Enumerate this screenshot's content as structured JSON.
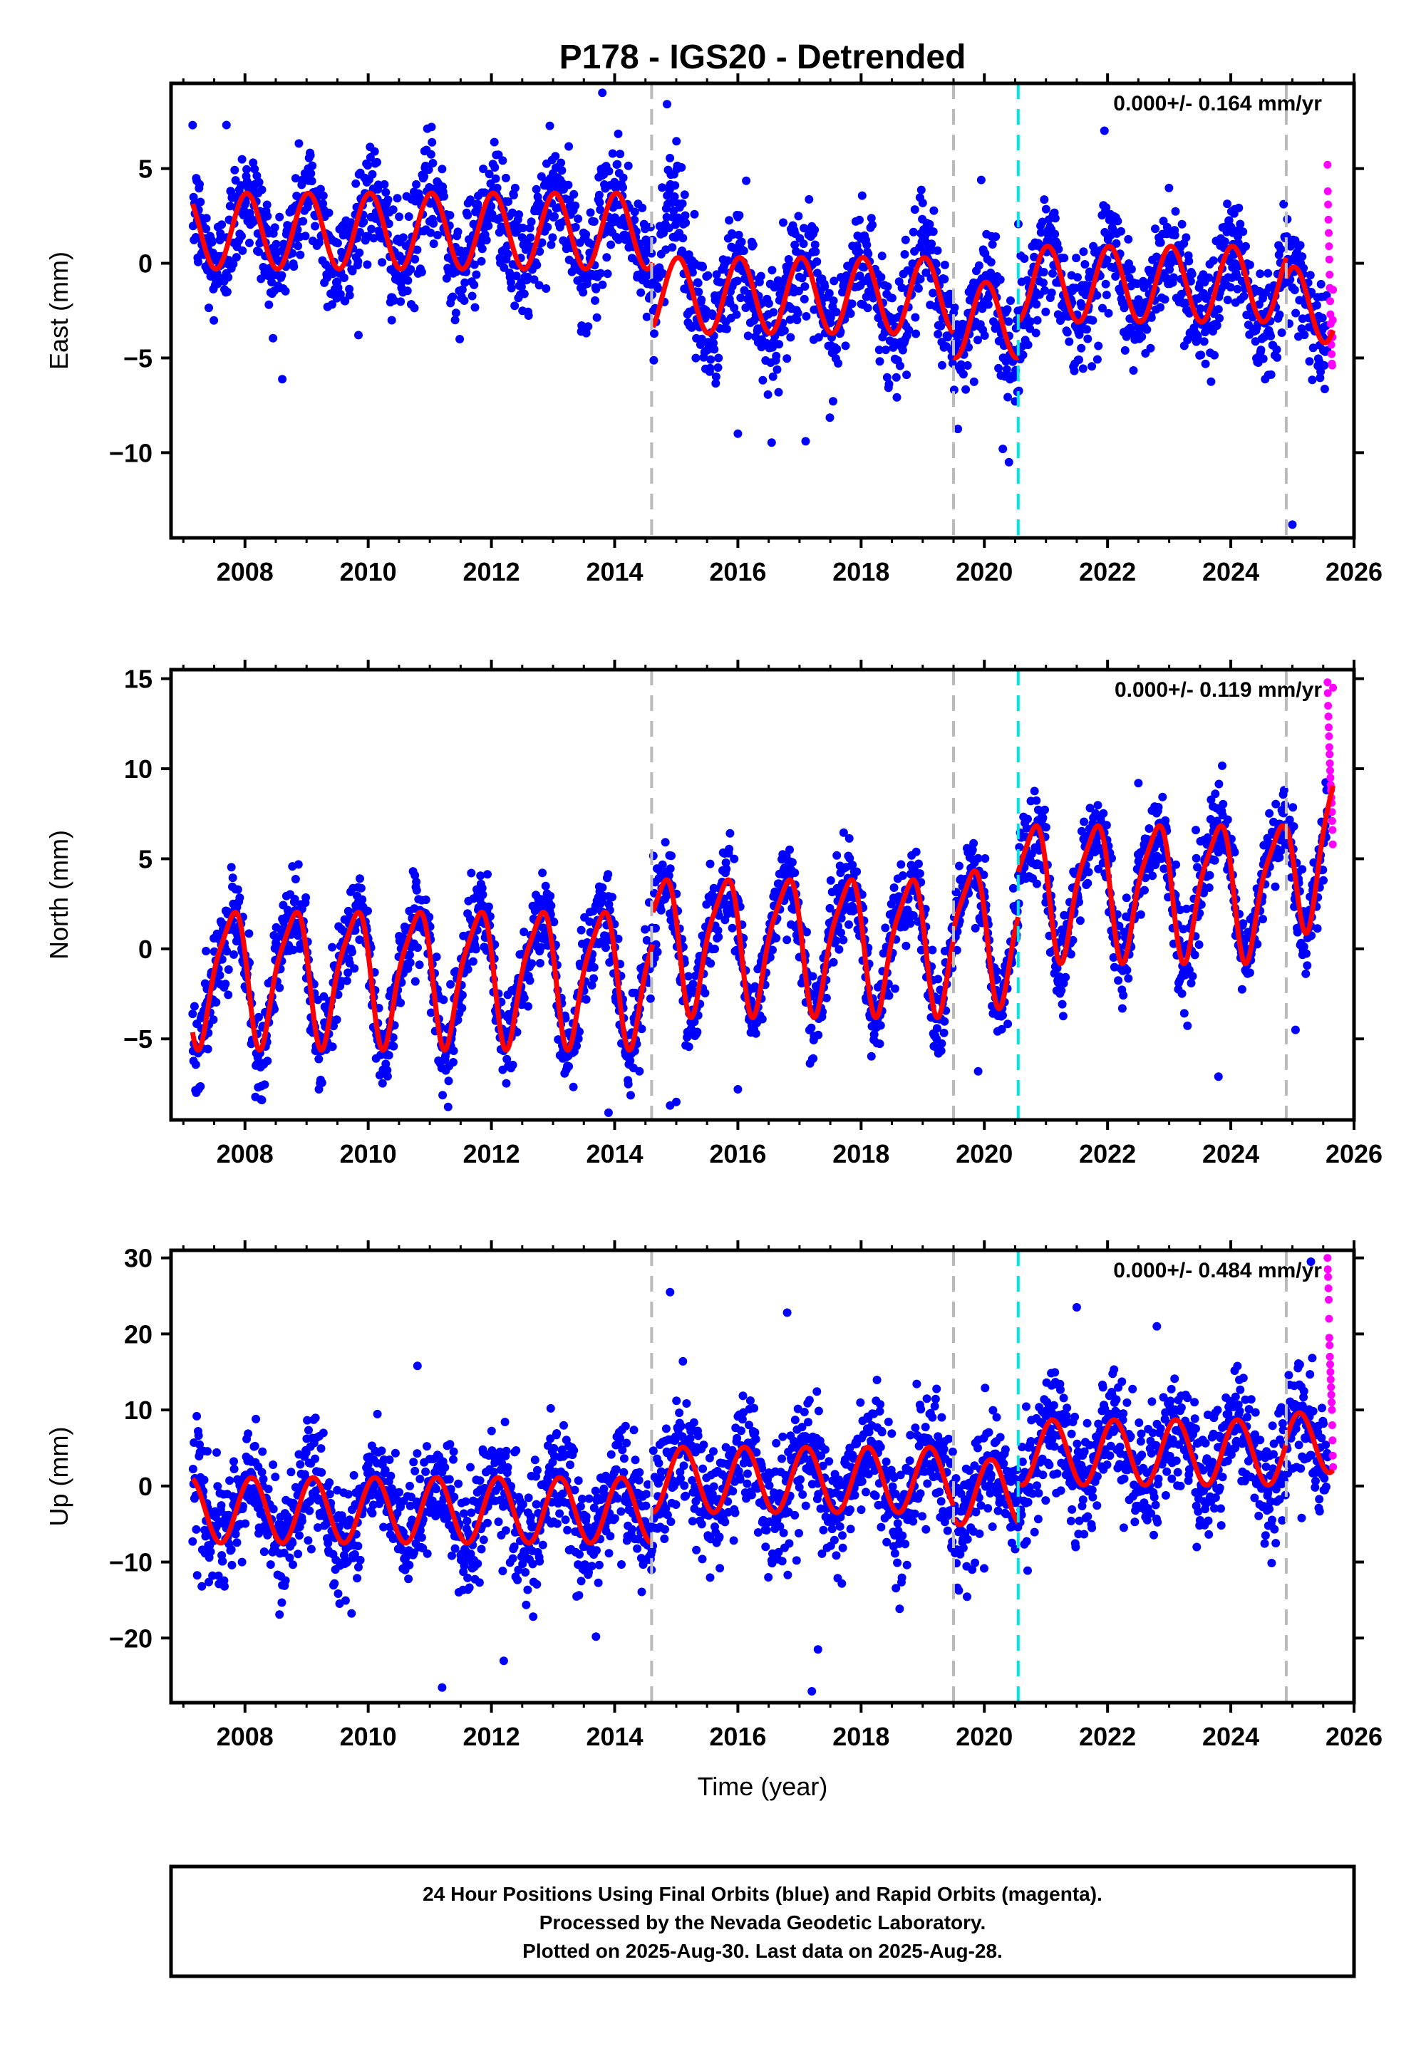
{
  "title": "P178 - IGS20 - Detrended",
  "xlabel": "Time (year)",
  "footer": {
    "line1": "24 Hour Positions Using Final Orbits (blue) and Rapid Orbits (magenta).",
    "line2": "Processed by the Nevada Geodetic Laboratory.",
    "line3": "Plotted on 2025-Aug-30. Last data on 2025-Aug-28."
  },
  "colors": {
    "final": "#0000ff",
    "rapid": "#ff00ff",
    "model": "#ff0000",
    "equipment_change": "#bbbbbb",
    "earthquake": "#00e5e5"
  },
  "chart_data": [
    {
      "type": "scatter",
      "name": "east",
      "ylabel": "East (mm)",
      "rate": "0.000+/- 0.164 mm/yr",
      "xlim": [
        2006.8,
        2026.0
      ],
      "ylim": [
        -14.5,
        9.5
      ],
      "xticks": [
        2008,
        2010,
        2012,
        2014,
        2016,
        2018,
        2020,
        2022,
        2024,
        2026
      ],
      "xticklabels": [
        "2008",
        "2010",
        "2012",
        "2014",
        "2016",
        "2018",
        "2020",
        "2022",
        "2024",
        "2026"
      ],
      "yticks": [
        -10,
        -5,
        0,
        5
      ],
      "yticklabels": [
        "−10",
        "−5",
        "0",
        "5"
      ],
      "dashed_gray_x": [
        2014.6,
        2019.5,
        2024.9
      ],
      "dashed_cyan_x": [
        2020.55
      ],
      "model": {
        "segments": [
          {
            "t0": 2007.15,
            "t1": 2014.62,
            "offset": 1.7,
            "trend": 0.0,
            "ann": 2.0,
            "ann_phase": 1.4,
            "semi": 0.0,
            "semi_phase": 0.0
          },
          {
            "t0": 2014.62,
            "t1": 2019.5,
            "offset": -1.7,
            "trend": 0.0,
            "ann": 2.0,
            "ann_phase": 1.4,
            "semi": 0.0,
            "semi_phase": 0.0
          },
          {
            "t0": 2019.5,
            "t1": 2020.55,
            "offset": -3.0,
            "trend": 0.0,
            "ann": 2.0,
            "ann_phase": 1.4,
            "semi": 0.0,
            "semi_phase": 0.0
          },
          {
            "t0": 2020.55,
            "t1": 2024.9,
            "offset": -1.1,
            "trend": 0.0,
            "ann": 2.0,
            "ann_phase": 1.4,
            "semi": 0.0,
            "semi_phase": 0.0
          },
          {
            "t0": 2024.9,
            "t1": 2025.66,
            "offset": -2.2,
            "trend": 0.0,
            "ann": 2.0,
            "ann_phase": 1.4,
            "semi": 0.0,
            "semi_phase": 0.0
          }
        ]
      },
      "residual_sd": 1.5,
      "anomalies": [
        {
          "t0": 2014.62,
          "t1": 2015.2,
          "shift": 4.0
        }
      ],
      "outliers": [
        [
          2013.8,
          9.0
        ],
        [
          2014.85,
          8.4
        ],
        [
          2019.95,
          4.4
        ],
        [
          2020.4,
          -10.5
        ],
        [
          2020.3,
          -9.8
        ],
        [
          2025.0,
          -13.8
        ],
        [
          2021.95,
          7.0
        ],
        [
          2016.0,
          -9.0
        ],
        [
          2017.1,
          -9.4
        ],
        [
          2007.7,
          7.3
        ]
      ],
      "rapid": {
        "t0": 2025.57,
        "t1": 2025.66,
        "values": [
          5.2,
          3.8,
          3.1,
          2.3,
          1.6,
          0.9,
          0.2,
          -0.6,
          -1.3,
          -2.0,
          -2.7,
          -3.2,
          -3.7,
          -4.3,
          -4.8,
          -5.3,
          -5.4,
          -3.9,
          -3.0,
          -1.4
        ]
      }
    },
    {
      "type": "scatter",
      "name": "north",
      "ylabel": "North (mm)",
      "rate": "0.000+/- 0.119 mm/yr",
      "xlim": [
        2006.8,
        2026.0
      ],
      "ylim": [
        -9.5,
        15.5
      ],
      "xticks": [
        2008,
        2010,
        2012,
        2014,
        2016,
        2018,
        2020,
        2022,
        2024,
        2026
      ],
      "xticklabels": [
        "2008",
        "2010",
        "2012",
        "2014",
        "2016",
        "2018",
        "2020",
        "2022",
        "2024",
        "2026"
      ],
      "yticks": [
        -5,
        0,
        5,
        10,
        15
      ],
      "yticklabels": [
        "−5",
        "0",
        "5",
        "10",
        "15"
      ],
      "dashed_gray_x": [
        2014.6,
        2019.5,
        2024.9
      ],
      "dashed_cyan_x": [
        2020.55
      ],
      "model": {
        "segments": [
          {
            "t0": 2007.15,
            "t1": 2014.62,
            "offset": -1.4,
            "trend": 0.0,
            "ann": 3.6,
            "ann_phase": 3.0,
            "semi": 0.8,
            "semi_phase": 2.2
          },
          {
            "t0": 2014.62,
            "t1": 2019.5,
            "offset": 0.4,
            "trend": 0.0,
            "ann": 3.6,
            "ann_phase": 3.0,
            "semi": 0.8,
            "semi_phase": 2.2
          },
          {
            "t0": 2019.5,
            "t1": 2020.55,
            "offset": 0.9,
            "trend": 0.0,
            "ann": 3.6,
            "ann_phase": 3.0,
            "semi": 0.8,
            "semi_phase": 2.2
          },
          {
            "t0": 2020.55,
            "t1": 2024.9,
            "offset": 3.4,
            "trend": 0.0,
            "ann": 3.6,
            "ann_phase": 3.0,
            "semi": 0.8,
            "semi_phase": 2.2
          },
          {
            "t0": 2024.9,
            "t1": 2025.66,
            "offset": 3.6,
            "trend": 4.5,
            "ann": 3.6,
            "ann_phase": 3.0,
            "semi": 0.8,
            "semi_phase": 2.2
          }
        ]
      },
      "residual_sd": 1.2,
      "anomalies": [],
      "outliers": [
        [
          2013.9,
          -9.1
        ],
        [
          2014.9,
          -8.7
        ],
        [
          2015.0,
          -8.5
        ],
        [
          2019.9,
          -6.8
        ],
        [
          2023.8,
          -7.1
        ],
        [
          2025.05,
          -4.5
        ],
        [
          2022.5,
          9.2
        ],
        [
          2016.0,
          -7.8
        ],
        [
          2009.2,
          -7.8
        ]
      ],
      "rapid": {
        "t0": 2025.57,
        "t1": 2025.66,
        "values": [
          14.8,
          14.2,
          13.5,
          12.9,
          12.3,
          11.8,
          11.2,
          10.8,
          10.3,
          9.9,
          9.5,
          9.1,
          8.8,
          8.4,
          8.1,
          7.6,
          7.1,
          6.6,
          5.8,
          14.5
        ]
      }
    },
    {
      "type": "scatter",
      "name": "up",
      "ylabel": "Up (mm)",
      "rate": "0.000+/- 0.484 mm/yr",
      "xlim": [
        2006.8,
        2026.0
      ],
      "ylim": [
        -28.5,
        31.0
      ],
      "xticks": [
        2008,
        2010,
        2012,
        2014,
        2016,
        2018,
        2020,
        2022,
        2024,
        2026
      ],
      "xticklabels": [
        "2008",
        "2010",
        "2012",
        "2014",
        "2016",
        "2018",
        "2020",
        "2022",
        "2024",
        "2026"
      ],
      "yticks": [
        -20,
        -10,
        0,
        10,
        20,
        30
      ],
      "yticklabels": [
        "−20",
        "−10",
        "0",
        "10",
        "20",
        "30"
      ],
      "dashed_gray_x": [
        2014.6,
        2019.5,
        2024.9
      ],
      "dashed_cyan_x": [
        2020.55
      ],
      "model": {
        "segments": [
          {
            "t0": 2007.15,
            "t1": 2014.62,
            "offset": -3.2,
            "trend": 0.0,
            "ann": 4.3,
            "ann_phase": 0.9,
            "semi": 0.0,
            "semi_phase": 0.0
          },
          {
            "t0": 2014.62,
            "t1": 2019.5,
            "offset": 0.8,
            "trend": 0.0,
            "ann": 4.3,
            "ann_phase": 0.9,
            "semi": 0.0,
            "semi_phase": 0.0
          },
          {
            "t0": 2019.5,
            "t1": 2020.55,
            "offset": -0.8,
            "trend": 0.0,
            "ann": 4.3,
            "ann_phase": 0.9,
            "semi": 0.0,
            "semi_phase": 0.0
          },
          {
            "t0": 2020.55,
            "t1": 2024.9,
            "offset": 4.4,
            "trend": 0.0,
            "ann": 4.3,
            "ann_phase": 0.9,
            "semi": 0.0,
            "semi_phase": 0.0
          },
          {
            "t0": 2024.9,
            "t1": 2025.66,
            "offset": 5.0,
            "trend": 1.5,
            "ann": 4.3,
            "ann_phase": 0.9,
            "semi": 0.0,
            "semi_phase": 0.0
          }
        ]
      },
      "residual_sd": 3.8,
      "anomalies": [],
      "outliers": [
        [
          2011.2,
          -26.5
        ],
        [
          2017.2,
          -27.0
        ],
        [
          2014.9,
          25.5
        ],
        [
          2016.8,
          22.8
        ],
        [
          2021.5,
          23.5
        ],
        [
          2022.8,
          21.0
        ],
        [
          2025.3,
          29.5
        ],
        [
          2010.8,
          15.8
        ],
        [
          2012.2,
          -23.0
        ],
        [
          2017.3,
          -21.5
        ]
      ],
      "rapid": {
        "t0": 2025.57,
        "t1": 2025.66,
        "values": [
          30.0,
          28.5,
          27.5,
          26.0,
          24.5,
          22.0,
          19.5,
          18.5,
          17.0,
          16.0,
          15.0,
          14.0,
          13.0,
          12.0,
          11.0,
          10.0,
          8.0,
          6.0,
          4.0,
          2.5
        ]
      }
    }
  ]
}
